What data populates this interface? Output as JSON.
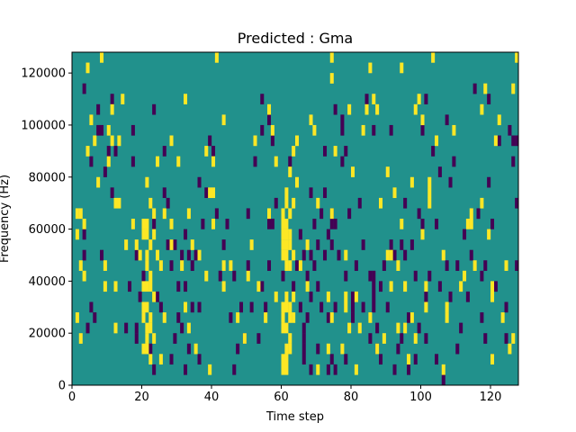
{
  "chart_data": {
    "type": "heatmap",
    "title": "Predicted : Gma",
    "xlabel": "Time step",
    "ylabel": "Frequency (Hz)",
    "xlim": [
      0,
      128
    ],
    "ylim": [
      0,
      128000
    ],
    "x_ticks": [
      0,
      20,
      40,
      60,
      80,
      100,
      120
    ],
    "y_ticks": [
      0,
      20000,
      40000,
      60000,
      80000,
      100000,
      120000
    ],
    "y_tick_labels": [
      "0",
      "20000",
      "40000",
      "60000",
      "80000",
      "100000",
      "120000"
    ],
    "grid": false,
    "legend": "none",
    "levels": [
      -1,
      0,
      1
    ],
    "colors": {
      "low": "#440154",
      "mid": "#21918c",
      "high": "#fde725",
      "frame": "#000000"
    },
    "background_value": 0,
    "cell_height_hz": 4000,
    "high_cells": [
      [
        1,
        64000
      ],
      [
        1,
        56000
      ],
      [
        1,
        24000
      ],
      [
        2,
        44000
      ],
      [
        2,
        16000
      ],
      [
        2,
        64000
      ],
      [
        3,
        60000
      ],
      [
        3,
        40000
      ],
      [
        4,
        88000
      ],
      [
        4,
        120000
      ],
      [
        5,
        100000
      ],
      [
        6,
        92000
      ],
      [
        7,
        76000
      ],
      [
        8,
        124000
      ],
      [
        9,
        44000
      ],
      [
        9,
        36000
      ],
      [
        10,
        84000
      ],
      [
        10,
        96000
      ],
      [
        11,
        92000
      ],
      [
        11,
        104000
      ],
      [
        12,
        20000
      ],
      [
        12,
        68000
      ],
      [
        12,
        36000
      ],
      [
        13,
        92000
      ],
      [
        13,
        68000
      ],
      [
        14,
        108000
      ],
      [
        15,
        52000
      ],
      [
        17,
        60000
      ],
      [
        18,
        52000
      ],
      [
        19,
        48000
      ],
      [
        20,
        28000
      ],
      [
        20,
        24000
      ],
      [
        20,
        12000
      ],
      [
        20,
        60000
      ],
      [
        20,
        56000
      ],
      [
        20,
        36000
      ],
      [
        21,
        60000
      ],
      [
        21,
        56000
      ],
      [
        21,
        36000
      ],
      [
        21,
        48000
      ],
      [
        21,
        44000
      ],
      [
        21,
        76000
      ],
      [
        21,
        28000
      ],
      [
        21,
        20000
      ],
      [
        21,
        16000
      ],
      [
        21,
        12000
      ],
      [
        22,
        24000
      ],
      [
        22,
        36000
      ],
      [
        22,
        68000
      ],
      [
        22,
        52000
      ],
      [
        22,
        8000
      ],
      [
        22,
        40000
      ],
      [
        22,
        20000
      ],
      [
        23,
        64000
      ],
      [
        23,
        56000
      ],
      [
        23,
        32000
      ],
      [
        23,
        16000
      ],
      [
        24,
        48000
      ],
      [
        24,
        84000
      ],
      [
        25,
        44000
      ],
      [
        25,
        8000
      ],
      [
        26,
        64000
      ],
      [
        26,
        24000
      ],
      [
        28,
        52000
      ],
      [
        28,
        92000
      ],
      [
        28,
        60000
      ],
      [
        30,
        84000
      ],
      [
        31,
        44000
      ],
      [
        32,
        108000
      ],
      [
        32,
        28000
      ],
      [
        33,
        64000
      ],
      [
        33,
        20000
      ],
      [
        34,
        52000
      ],
      [
        35,
        12000
      ],
      [
        36,
        48000
      ],
      [
        38,
        88000
      ],
      [
        38,
        40000
      ],
      [
        39,
        72000
      ],
      [
        39,
        4000
      ],
      [
        40,
        72000
      ],
      [
        40,
        60000
      ],
      [
        40,
        84000
      ],
      [
        41,
        124000
      ],
      [
        43,
        100000
      ],
      [
        43,
        44000
      ],
      [
        43,
        36000
      ],
      [
        45,
        44000
      ],
      [
        47,
        24000
      ],
      [
        49,
        16000
      ],
      [
        50,
        40000
      ],
      [
        51,
        52000
      ],
      [
        52,
        92000
      ],
      [
        53,
        36000
      ],
      [
        55,
        24000
      ],
      [
        56,
        64000
      ],
      [
        56,
        104000
      ],
      [
        57,
        96000
      ],
      [
        58,
        84000
      ],
      [
        58,
        32000
      ],
      [
        60,
        20000
      ],
      [
        60,
        24000
      ],
      [
        60,
        8000
      ],
      [
        60,
        4000
      ],
      [
        60,
        64000
      ],
      [
        60,
        60000
      ],
      [
        60,
        56000
      ],
      [
        60,
        52000
      ],
      [
        60,
        48000
      ],
      [
        60,
        28000
      ],
      [
        61,
        20000
      ],
      [
        61,
        60000
      ],
      [
        61,
        56000
      ],
      [
        61,
        52000
      ],
      [
        61,
        48000
      ],
      [
        61,
        44000
      ],
      [
        61,
        72000
      ],
      [
        61,
        68000
      ],
      [
        61,
        12000
      ],
      [
        61,
        8000
      ],
      [
        61,
        4000
      ],
      [
        61,
        32000
      ],
      [
        61,
        28000
      ],
      [
        62,
        64000
      ],
      [
        62,
        56000
      ],
      [
        62,
        52000
      ],
      [
        62,
        44000
      ],
      [
        62,
        28000
      ],
      [
        62,
        24000
      ],
      [
        62,
        16000
      ],
      [
        62,
        12000
      ],
      [
        62,
        80000
      ],
      [
        63,
        48000
      ],
      [
        63,
        24000
      ],
      [
        63,
        32000
      ],
      [
        63,
        88000
      ],
      [
        63,
        68000
      ],
      [
        64,
        76000
      ],
      [
        64,
        92000
      ],
      [
        65,
        44000
      ],
      [
        67,
        52000
      ],
      [
        67,
        36000
      ],
      [
        68,
        100000
      ],
      [
        69,
        96000
      ],
      [
        70,
        68000
      ],
      [
        70,
        4000
      ],
      [
        73,
        32000
      ],
      [
        73,
        12000
      ],
      [
        74,
        124000
      ],
      [
        74,
        116000
      ],
      [
        74,
        24000
      ],
      [
        74,
        64000
      ],
      [
        75,
        88000
      ],
      [
        77,
        12000
      ],
      [
        78,
        32000
      ],
      [
        78,
        48000
      ],
      [
        78,
        28000
      ],
      [
        79,
        20000
      ],
      [
        79,
        104000
      ],
      [
        80,
        80000
      ],
      [
        81,
        32000
      ],
      [
        81,
        4000
      ],
      [
        82,
        20000
      ],
      [
        83,
        96000
      ],
      [
        84,
        104000
      ],
      [
        85,
        120000
      ],
      [
        85,
        24000
      ],
      [
        86,
        108000
      ],
      [
        87,
        104000
      ],
      [
        87,
        12000
      ],
      [
        88,
        68000
      ],
      [
        89,
        16000
      ],
      [
        90,
        48000
      ],
      [
        90,
        80000
      ],
      [
        91,
        36000
      ],
      [
        91,
        48000
      ],
      [
        92,
        72000
      ],
      [
        93,
        44000
      ],
      [
        93,
        20000
      ],
      [
        94,
        60000
      ],
      [
        94,
        120000
      ],
      [
        95,
        36000
      ],
      [
        95,
        20000
      ],
      [
        96,
        8000
      ],
      [
        97,
        24000
      ],
      [
        97,
        76000
      ],
      [
        98,
        16000
      ],
      [
        98,
        104000
      ],
      [
        99,
        108000
      ],
      [
        100,
        100000
      ],
      [
        100,
        56000
      ],
      [
        101,
        36000
      ],
      [
        101,
        28000
      ],
      [
        102,
        72000
      ],
      [
        102,
        76000
      ],
      [
        102,
        68000
      ],
      [
        103,
        124000
      ],
      [
        104,
        92000
      ],
      [
        106,
        4000
      ],
      [
        106,
        48000
      ],
      [
        107,
        28000
      ],
      [
        107,
        24000
      ],
      [
        109,
        96000
      ],
      [
        111,
        36000
      ],
      [
        112,
        40000
      ],
      [
        113,
        60000
      ],
      [
        114,
        64000
      ],
      [
        114,
        60000
      ],
      [
        115,
        44000
      ],
      [
        117,
        68000
      ],
      [
        117,
        104000
      ],
      [
        118,
        112000
      ],
      [
        119,
        56000
      ],
      [
        120,
        36000
      ],
      [
        120,
        32000
      ],
      [
        120,
        8000
      ],
      [
        121,
        92000
      ],
      [
        122,
        100000
      ],
      [
        123,
        24000
      ],
      [
        124,
        44000
      ],
      [
        125,
        12000
      ],
      [
        126,
        112000
      ],
      [
        126,
        16000
      ],
      [
        127,
        124000
      ]
    ],
    "low_cells": [
      [
        3,
        112000
      ],
      [
        3,
        56000
      ],
      [
        3,
        48000
      ],
      [
        4,
        20000
      ],
      [
        5,
        84000
      ],
      [
        5,
        28000
      ],
      [
        6,
        24000
      ],
      [
        7,
        104000
      ],
      [
        7,
        96000
      ],
      [
        8,
        96000
      ],
      [
        8,
        48000
      ],
      [
        9,
        80000
      ],
      [
        10,
        88000
      ],
      [
        11,
        108000
      ],
      [
        11,
        72000
      ],
      [
        12,
        88000
      ],
      [
        15,
        20000
      ],
      [
        16,
        36000
      ],
      [
        17,
        96000
      ],
      [
        17,
        84000
      ],
      [
        18,
        20000
      ],
      [
        18,
        16000
      ],
      [
        18,
        48000
      ],
      [
        19,
        32000
      ],
      [
        20,
        40000
      ],
      [
        22,
        12000
      ],
      [
        23,
        104000
      ],
      [
        23,
        60000
      ],
      [
        23,
        4000
      ],
      [
        24,
        32000
      ],
      [
        25,
        28000
      ],
      [
        26,
        88000
      ],
      [
        26,
        72000
      ],
      [
        27,
        68000
      ],
      [
        27,
        52000
      ],
      [
        28,
        44000
      ],
      [
        28,
        8000
      ],
      [
        29,
        52000
      ],
      [
        29,
        16000
      ],
      [
        30,
        36000
      ],
      [
        30,
        24000
      ],
      [
        31,
        48000
      ],
      [
        31,
        20000
      ],
      [
        32,
        36000
      ],
      [
        32,
        4000
      ],
      [
        32,
        56000
      ],
      [
        33,
        48000
      ],
      [
        33,
        12000
      ],
      [
        34,
        28000
      ],
      [
        34,
        44000
      ],
      [
        35,
        48000
      ],
      [
        36,
        76000
      ],
      [
        36,
        28000
      ],
      [
        36,
        8000
      ],
      [
        37,
        60000
      ],
      [
        38,
        72000
      ],
      [
        39,
        92000
      ],
      [
        40,
        88000
      ],
      [
        41,
        64000
      ],
      [
        42,
        40000
      ],
      [
        43,
        52000
      ],
      [
        44,
        60000
      ],
      [
        45,
        24000
      ],
      [
        46,
        4000
      ],
      [
        46,
        40000
      ],
      [
        47,
        12000
      ],
      [
        48,
        28000
      ],
      [
        49,
        16000
      ],
      [
        50,
        64000
      ],
      [
        50,
        44000
      ],
      [
        51,
        28000
      ],
      [
        52,
        84000
      ],
      [
        53,
        16000
      ],
      [
        54,
        108000
      ],
      [
        54,
        96000
      ],
      [
        54,
        36000
      ],
      [
        55,
        28000
      ],
      [
        56,
        100000
      ],
      [
        56,
        60000
      ],
      [
        56,
        44000
      ],
      [
        57,
        60000
      ],
      [
        57,
        92000
      ],
      [
        58,
        68000
      ],
      [
        60,
        40000
      ],
      [
        62,
        84000
      ],
      [
        63,
        36000
      ],
      [
        64,
        44000
      ],
      [
        65,
        56000
      ],
      [
        65,
        28000
      ],
      [
        66,
        20000
      ],
      [
        66,
        16000
      ],
      [
        66,
        12000
      ],
      [
        66,
        8000
      ],
      [
        66,
        48000
      ],
      [
        67,
        40000
      ],
      [
        67,
        24000
      ],
      [
        68,
        72000
      ],
      [
        68,
        48000
      ],
      [
        68,
        32000
      ],
      [
        68,
        4000
      ],
      [
        69,
        60000
      ],
      [
        69,
        44000
      ],
      [
        70,
        52000
      ],
      [
        70,
        36000
      ],
      [
        70,
        12000
      ],
      [
        71,
        64000
      ],
      [
        71,
        28000
      ],
      [
        72,
        72000
      ],
      [
        72,
        88000
      ],
      [
        72,
        48000
      ],
      [
        73,
        24000
      ],
      [
        73,
        56000
      ],
      [
        73,
        4000
      ],
      [
        74,
        64000
      ],
      [
        74,
        60000
      ],
      [
        74,
        52000
      ],
      [
        74,
        8000
      ],
      [
        75,
        104000
      ],
      [
        75,
        60000
      ],
      [
        75,
        28000
      ],
      [
        75,
        4000
      ],
      [
        76,
        48000
      ],
      [
        77,
        100000
      ],
      [
        77,
        96000
      ],
      [
        77,
        84000
      ],
      [
        78,
        88000
      ],
      [
        78,
        40000
      ],
      [
        78,
        8000
      ],
      [
        79,
        64000
      ],
      [
        80,
        32000
      ],
      [
        80,
        28000
      ],
      [
        80,
        24000
      ],
      [
        81,
        44000
      ],
      [
        82,
        68000
      ],
      [
        83,
        52000
      ],
      [
        83,
        28000
      ],
      [
        84,
        108000
      ],
      [
        85,
        40000
      ],
      [
        85,
        16000
      ],
      [
        86,
        96000
      ],
      [
        86,
        40000
      ],
      [
        86,
        36000
      ],
      [
        86,
        32000
      ],
      [
        86,
        28000
      ],
      [
        87,
        20000
      ],
      [
        87,
        12000
      ],
      [
        88,
        36000
      ],
      [
        88,
        8000
      ],
      [
        89,
        44000
      ],
      [
        90,
        28000
      ],
      [
        91,
        96000
      ],
      [
        91,
        52000
      ],
      [
        92,
        48000
      ],
      [
        92,
        4000
      ],
      [
        93,
        12000
      ],
      [
        94,
        52000
      ],
      [
        94,
        16000
      ],
      [
        95,
        68000
      ],
      [
        95,
        48000
      ],
      [
        96,
        24000
      ],
      [
        96,
        4000
      ],
      [
        97,
        52000
      ],
      [
        98,
        40000
      ],
      [
        98,
        8000
      ],
      [
        99,
        64000
      ],
      [
        99,
        20000
      ],
      [
        100,
        96000
      ],
      [
        100,
        60000
      ],
      [
        101,
        108000
      ],
      [
        101,
        32000
      ],
      [
        101,
        16000
      ],
      [
        102,
        40000
      ],
      [
        103,
        88000
      ],
      [
        104,
        60000
      ],
      [
        104,
        8000
      ],
      [
        105,
        80000
      ],
      [
        105,
        36000
      ],
      [
        106,
        0
      ],
      [
        107,
        100000
      ],
      [
        107,
        44000
      ],
      [
        108,
        32000
      ],
      [
        108,
        76000
      ],
      [
        109,
        84000
      ],
      [
        110,
        44000
      ],
      [
        110,
        12000
      ],
      [
        111,
        20000
      ],
      [
        112,
        56000
      ],
      [
        113,
        32000
      ],
      [
        114,
        48000
      ],
      [
        115,
        112000
      ],
      [
        116,
        64000
      ],
      [
        117,
        40000
      ],
      [
        117,
        24000
      ],
      [
        118,
        44000
      ],
      [
        118,
        16000
      ],
      [
        119,
        108000
      ],
      [
        119,
        76000
      ],
      [
        120,
        60000
      ],
      [
        120,
        8000
      ],
      [
        121,
        36000
      ],
      [
        122,
        92000
      ],
      [
        124,
        28000
      ],
      [
        124,
        16000
      ],
      [
        125,
        96000
      ],
      [
        126,
        92000
      ],
      [
        126,
        84000
      ],
      [
        127,
        92000
      ],
      [
        127,
        68000
      ],
      [
        127,
        44000
      ]
    ]
  }
}
